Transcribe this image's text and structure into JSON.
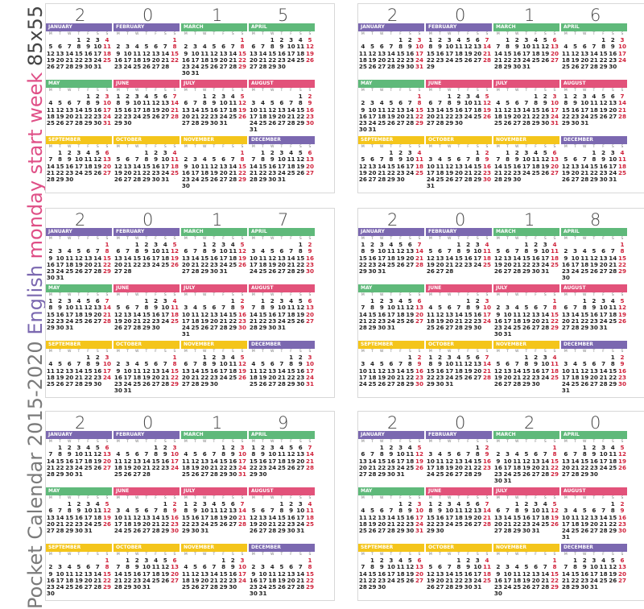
{
  "sidebar": {
    "part1": "Pocket Calendar 2015-2020 ",
    "part2": "English ",
    "part3": "monday start week ",
    "part4": "85x55 mm"
  },
  "weekday_labels": [
    "M",
    "T",
    "W",
    "T",
    "F",
    "S",
    "S"
  ],
  "month_names": [
    "JANUARY",
    "FEBRUARY",
    "MARCH",
    "APRIL",
    "MAY",
    "JUNE",
    "JULY",
    "AUGUST",
    "SEPTEMBER",
    "OCTOBER",
    "NOVEMBER",
    "DECEMBER"
  ],
  "colors": {
    "purple": "#7b68b0",
    "green": "#5fb97a",
    "pink": "#e2527a",
    "yellow": "#f4c51b",
    "sunday": "#d0233c"
  },
  "month_color_order": [
    "purple",
    "purple",
    "green",
    "green",
    "green",
    "pink",
    "pink",
    "pink",
    "yellow",
    "yellow",
    "yellow",
    "purple"
  ],
  "calendars": [
    {
      "year": "2015",
      "digits": [
        "2",
        "0",
        "1",
        "5"
      ]
    },
    {
      "year": "2016",
      "digits": [
        "2",
        "0",
        "1",
        "6"
      ]
    },
    {
      "year": "2017",
      "digits": [
        "2",
        "0",
        "1",
        "7"
      ]
    },
    {
      "year": "2018",
      "digits": [
        "2",
        "0",
        "1",
        "8"
      ]
    },
    {
      "year": "2019",
      "digits": [
        "2",
        "0",
        "1",
        "9"
      ]
    },
    {
      "year": "2020",
      "digits": [
        "2",
        "0",
        "2",
        "0"
      ]
    }
  ]
}
